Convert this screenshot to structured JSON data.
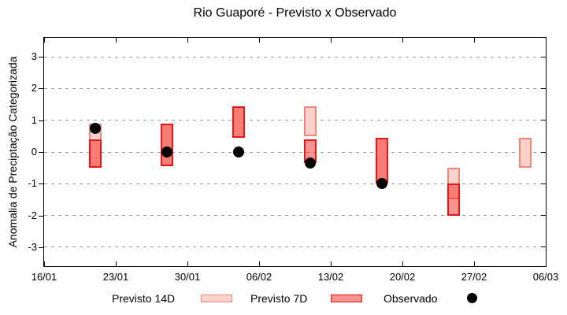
{
  "page": {
    "background": "#ffffff"
  },
  "chart_data": {
    "type": "candlestick",
    "title": "Rio Guaporé - Previsto x Observado",
    "ylabel": "Anomalia de Preciptação Categorizada",
    "xlabel": "",
    "ylim": [
      -3.6,
      3.6
    ],
    "grid": "dashed-horizontal",
    "grid_color": "#9b9b9b",
    "legend_position": "bottom-center",
    "yticks": [
      {
        "value": 3,
        "label": "3"
      },
      {
        "value": 2,
        "label": "2"
      },
      {
        "value": 1,
        "label": "1"
      },
      {
        "value": 0,
        "label": "0"
      },
      {
        "value": -1,
        "label": "-1"
      },
      {
        "value": -2,
        "label": "-2"
      },
      {
        "value": -3,
        "label": "-3"
      }
    ],
    "x_span_days": 49,
    "xticks": [
      {
        "day": 0,
        "label": "16/01"
      },
      {
        "day": 7,
        "label": "23/01"
      },
      {
        "day": 14,
        "label": "30/01"
      },
      {
        "day": 21,
        "label": "06/02"
      },
      {
        "day": 28,
        "label": "13/02"
      },
      {
        "day": 35,
        "label": "20/02"
      },
      {
        "day": 42,
        "label": "27/02"
      },
      {
        "day": 49,
        "label": "06/03"
      }
    ],
    "series": [
      {
        "key": "previsto_14d",
        "name": "Previsto 14D",
        "style": "range-bar",
        "fill": "#fbd1cb",
        "border": "#f0887a"
      },
      {
        "key": "previsto_7d",
        "name": "Previsto 7D",
        "style": "range-bar",
        "fill": "#f4281e",
        "fill_alpha": 0.5,
        "border": "#e41818"
      },
      {
        "key": "observado",
        "name": "Observado",
        "style": "point",
        "fill": "#000000"
      }
    ],
    "points": [
      {
        "date": "21/01",
        "day": 5,
        "previsto_14d": [
          -0.5,
          0.9
        ],
        "previsto_7d": [
          -0.5,
          0.4
        ],
        "observado": 0.75
      },
      {
        "date": "28/01",
        "day": 12,
        "previsto_14d": [
          -0.45,
          0.9
        ],
        "previsto_7d": [
          -0.45,
          0.9
        ],
        "observado": 0.0
      },
      {
        "date": "04/02",
        "day": 19,
        "previsto_14d": [
          0.45,
          1.45
        ],
        "previsto_7d": [
          0.45,
          1.45
        ],
        "observado": 0.0
      },
      {
        "date": "11/02",
        "day": 26,
        "previsto_14d": [
          0.5,
          1.45
        ],
        "previsto_7d": [
          -0.35,
          0.4
        ],
        "observado": -0.35
      },
      {
        "date": "18/02",
        "day": 33,
        "previsto_14d": [
          -1.0,
          0.45
        ],
        "previsto_7d": [
          -1.0,
          0.45
        ],
        "observado": -1.0
      },
      {
        "date": "25/02",
        "day": 40,
        "previsto_14d": [
          -1.5,
          -0.5
        ],
        "previsto_7d": [
          -2.0,
          -1.0
        ],
        "observado": null
      },
      {
        "date": "04/03",
        "day": 47,
        "previsto_14d": [
          -0.5,
          0.45
        ],
        "previsto_7d": null,
        "observado": null
      }
    ]
  },
  "legend": {
    "items": [
      {
        "label": "Previsto 14D",
        "marker": "box-light"
      },
      {
        "label": "Previsto 7D",
        "marker": "box-red"
      },
      {
        "label": "Observado",
        "marker": "dot"
      }
    ]
  }
}
